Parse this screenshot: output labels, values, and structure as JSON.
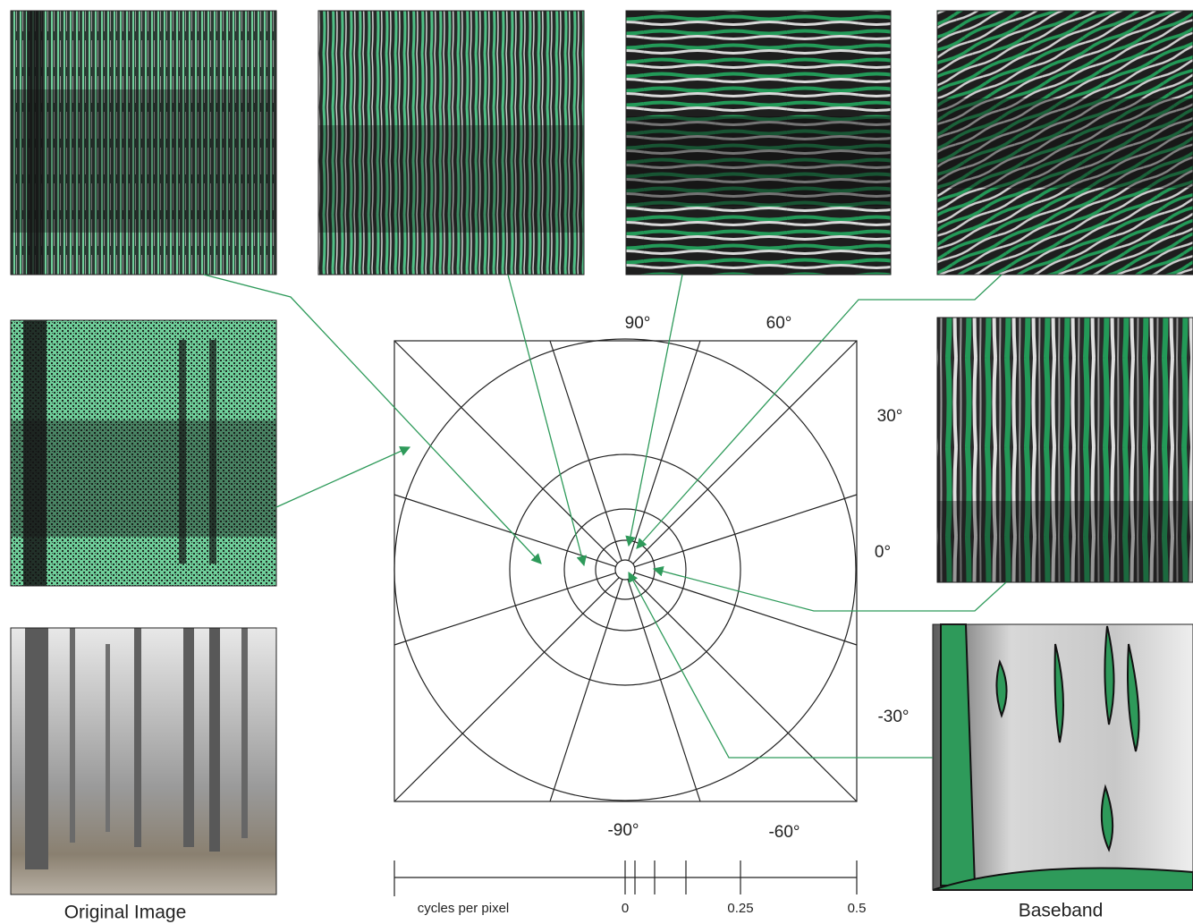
{
  "angle_labels": [
    "90°",
    "60°",
    "30°",
    "0°",
    "-30°",
    "-90°",
    "-60°"
  ],
  "scale": {
    "title": "cycles per pixel",
    "ticks": [
      "0",
      "0.25",
      "0.5"
    ]
  },
  "captions": {
    "original": "Original Image",
    "baseband": "Baseband"
  }
}
